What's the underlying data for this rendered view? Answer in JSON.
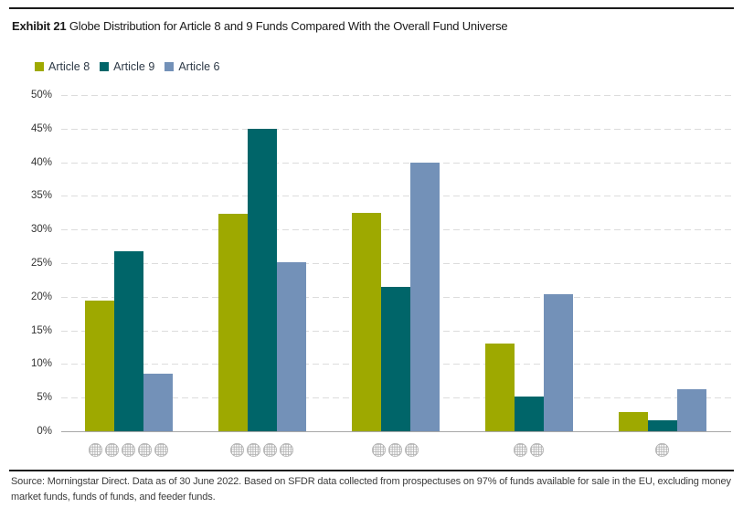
{
  "header": {
    "exhibit_label": "Exhibit 21",
    "title": "Globe Distribution for Article 8 and 9 Funds Compared With the Overall Fund Universe"
  },
  "legend": [
    {
      "label": "Article 8",
      "color": "#9EA900"
    },
    {
      "label": "Article 9",
      "color": "#006569"
    },
    {
      "label": "Article 6",
      "color": "#7391B8"
    }
  ],
  "chart_data": {
    "type": "bar",
    "title": "Globe Distribution for Article 8 and 9 Funds Compared With the Overall Fund Universe",
    "categories": [
      "5 globes",
      "4 globes",
      "3 globes",
      "2 globes",
      "1 globe"
    ],
    "category_globe_counts": [
      5,
      4,
      3,
      2,
      1
    ],
    "series": [
      {
        "name": "Article 8",
        "color": "#9EA900",
        "values": [
          19.4,
          32.3,
          32.5,
          13.0,
          2.9
        ]
      },
      {
        "name": "Article 9",
        "color": "#006569",
        "values": [
          26.8,
          45.0,
          21.5,
          5.2,
          1.6
        ]
      },
      {
        "name": "Article 6",
        "color": "#7391B8",
        "values": [
          8.5,
          25.1,
          39.9,
          20.4,
          6.2
        ]
      }
    ],
    "xlabel": "",
    "ylabel": "",
    "ylim": [
      0,
      50
    ],
    "ytick_step": 5,
    "ytick_labels": [
      "0%",
      "5%",
      "10%",
      "15%",
      "20%",
      "25%",
      "30%",
      "35%",
      "40%",
      "45%",
      "50%"
    ],
    "grid": "horizontal-dashed",
    "legend_position": "top-left",
    "x_axis_style": "globe-icons"
  },
  "icons": {
    "globe_color": "#b0b0b0"
  },
  "footer": {
    "source_text": "Source: Morningstar Direct. Data as of 30 June 2022. Based on SFDR data collected from prospectuses on 97% of funds available for sale in the EU, excluding money market funds, funds of funds, and feeder funds."
  }
}
